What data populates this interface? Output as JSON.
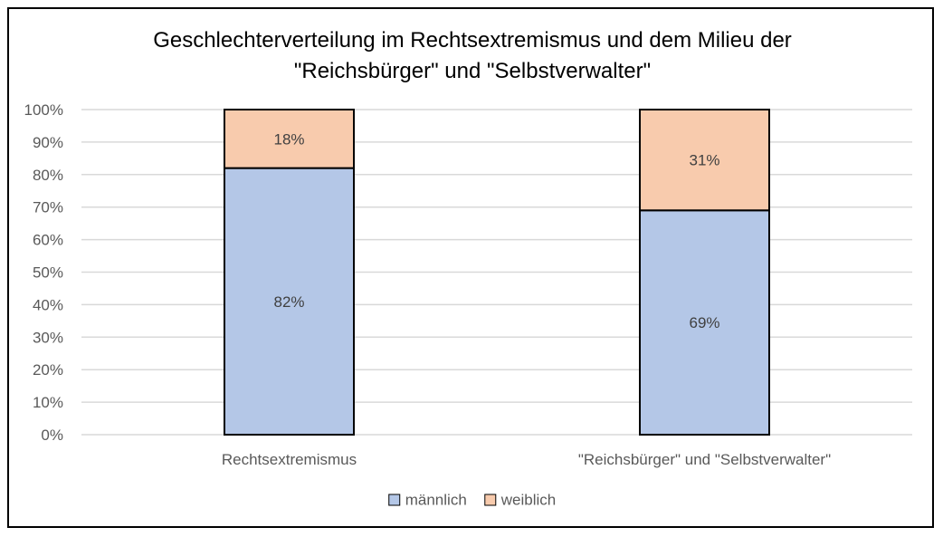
{
  "chart_data": {
    "type": "bar",
    "stacked": true,
    "title_lines": [
      "Geschlechterverteilung im Rechtsextremismus und dem Milieu der",
      "\"Reichsbürger\" und \"Selbstverwalter\""
    ],
    "categories": [
      "Rechtsextremismus",
      "\"Reichsbürger\" und \"Selbstverwalter\""
    ],
    "series": [
      {
        "name": "männlich",
        "values": [
          82,
          69
        ],
        "labels": [
          "82%",
          "69%"
        ],
        "color": "#b4c7e7"
      },
      {
        "name": "weiblich",
        "values": [
          18,
          31
        ],
        "labels": [
          "18%",
          "31%"
        ],
        "color": "#f8cbad"
      }
    ],
    "ylim": [
      0,
      100
    ],
    "yticks": [
      "0%",
      "10%",
      "20%",
      "30%",
      "40%",
      "50%",
      "60%",
      "70%",
      "80%",
      "90%",
      "100%"
    ],
    "ytick_values": [
      0,
      10,
      20,
      30,
      40,
      50,
      60,
      70,
      80,
      90,
      100
    ],
    "grid": true,
    "grid_color": "#d9d9d9",
    "bar_outline_color": "#000000",
    "legend_position": "bottom",
    "xlabel": "",
    "ylabel": ""
  }
}
